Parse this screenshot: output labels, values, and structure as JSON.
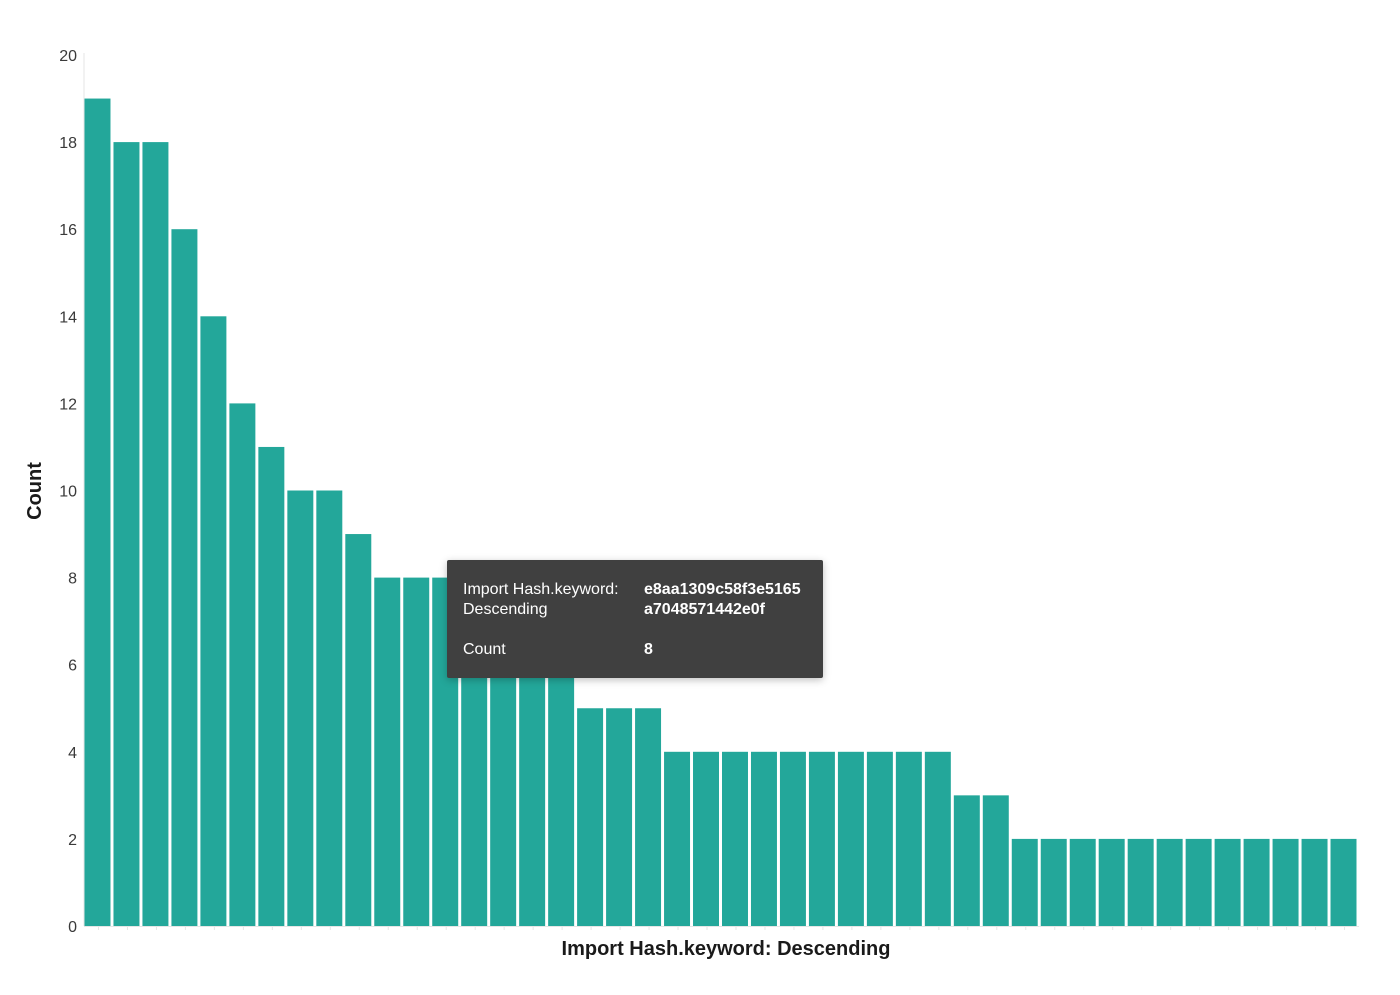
{
  "chart_data": {
    "type": "bar",
    "xlabel": "Import Hash.keyword: Descending",
    "ylabel": "Count",
    "ylim": [
      0,
      20
    ],
    "yticks": [
      0,
      2,
      4,
      6,
      8,
      10,
      12,
      14,
      16,
      18,
      20
    ],
    "grid": false,
    "color": "#23a79a",
    "values": [
      19,
      18,
      18,
      16,
      14,
      12,
      11,
      10,
      10,
      9,
      8,
      8,
      8,
      8,
      8,
      8,
      8,
      5,
      5,
      5,
      4,
      4,
      4,
      4,
      4,
      4,
      4,
      4,
      4,
      4,
      3,
      3,
      2,
      2,
      2,
      2,
      2,
      2,
      2,
      2,
      2,
      2,
      2,
      2
    ]
  },
  "tooltip": {
    "field_label": "Import Hash.keyword: Descending",
    "field_value": "e8aa1309c58f3e5165a7048571442e0f",
    "count_label": "Count",
    "count_value": "8"
  }
}
